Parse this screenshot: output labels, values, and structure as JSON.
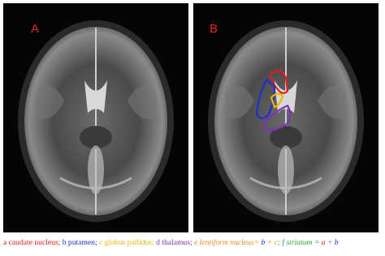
{
  "panels": [
    {
      "label": "A"
    },
    {
      "label": "B"
    }
  ],
  "caption": [
    {
      "text": "a caudate nucleus; "
    },
    {
      "text": "b putamen; "
    },
    {
      "text": "c globus pallidus; "
    },
    {
      "text": "d thalamus; "
    },
    {
      "text": "e lentiform nucleus= "
    },
    {
      "text": "b"
    },
    {
      "text": " + "
    },
    {
      "text": "c"
    },
    {
      "text": "; f striatum = "
    },
    {
      "text": "a"
    },
    {
      "text": " + "
    },
    {
      "text": "b"
    }
  ]
}
